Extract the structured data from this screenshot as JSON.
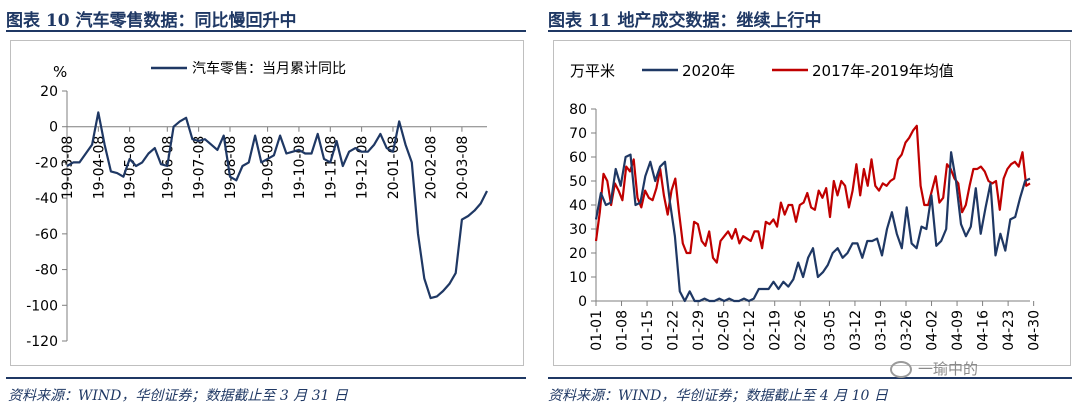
{
  "panels": {
    "left": {
      "title": "图表 10   汽车零售数据：同比慢回升中",
      "source": "资料来源：WIND，华创证券；数据截止至 3 月 31 日"
    },
    "right": {
      "title": "图表 11   地产成交数据：继续上行中",
      "source": "资料来源：WIND，华创证券；数据截止至 4 月 10 日"
    }
  },
  "watermark": "一瑜中的",
  "colors": {
    "navy": "#1f3864",
    "red": "#c00000"
  },
  "chart_data": [
    {
      "type": "line",
      "ylabel": "%",
      "ylim": [
        -120,
        20
      ],
      "yticks": [
        20,
        0,
        -20,
        -40,
        -60,
        -80,
        -100,
        -120
      ],
      "x": [
        "19-03-08",
        "19-03-15",
        "19-03-22",
        "19-03-29",
        "19-04-05",
        "19-04-08",
        "19-04-12",
        "19-04-19",
        "19-04-26",
        "19-05-03",
        "19-05-08",
        "19-05-10",
        "19-05-17",
        "19-05-24",
        "19-05-31",
        "19-06-07",
        "19-06-08",
        "19-06-14",
        "19-06-21",
        "19-06-28",
        "19-07-05",
        "19-07-08",
        "19-07-12",
        "19-07-19",
        "19-07-26",
        "19-08-02",
        "19-08-08",
        "19-08-09",
        "19-08-16",
        "19-08-23",
        "19-08-30",
        "19-09-06",
        "19-09-08",
        "19-09-13",
        "19-09-20",
        "19-09-27",
        "19-10-04",
        "19-10-08",
        "19-10-11",
        "19-10-18",
        "19-10-25",
        "19-11-01",
        "19-11-08",
        "19-11-15",
        "19-11-22",
        "19-11-29",
        "19-12-06",
        "19-12-08",
        "19-12-13",
        "19-12-20",
        "19-12-27",
        "20-01-03",
        "20-01-08",
        "20-01-10",
        "20-01-17",
        "20-01-24",
        "20-01-31",
        "20-02-07",
        "20-02-08",
        "20-02-14",
        "20-02-21",
        "20-02-28",
        "20-03-06",
        "20-03-08",
        "20-03-13",
        "20-03-20",
        "20-03-27",
        "20-03-31"
      ],
      "xticks": [
        "19-03-08",
        "19-04-08",
        "19-05-08",
        "19-06-08",
        "19-07-08",
        "19-08-08",
        "19-09-08",
        "19-10-08",
        "19-11-08",
        "19-12-08",
        "20-01-08",
        "20-02-08",
        "20-03-08"
      ],
      "series": [
        {
          "name": "汽车零售：当月累计同比",
          "color": "#1f3864",
          "values": [
            -22,
            -20,
            -20,
            -15,
            -10,
            8,
            -10,
            -25,
            -26,
            -28,
            -18,
            -22,
            -20,
            -15,
            -12,
            -21,
            -22,
            0,
            3,
            5,
            -7,
            -8,
            -7,
            -10,
            -13,
            -5,
            -28,
            -30,
            -22,
            -20,
            -5,
            -20,
            -18,
            -16,
            -5,
            -15,
            -14,
            -13,
            -15,
            -15,
            -4,
            -18,
            -20,
            -8,
            -22,
            -14,
            -12,
            -14,
            -14,
            -10,
            -4,
            -12,
            -14,
            3,
            -10,
            -20,
            -60,
            -85,
            -96,
            -95,
            -92,
            -88,
            -82,
            -52,
            -50,
            -47,
            -43,
            -36
          ]
        }
      ]
    },
    {
      "type": "line",
      "ylabel": "万平米",
      "ylim": [
        0,
        80
      ],
      "yticks": [
        80,
        70,
        60,
        50,
        40,
        30,
        20,
        10,
        0
      ],
      "xticks": [
        "01-01",
        "01-08",
        "01-15",
        "01-22",
        "01-29",
        "02-05",
        "02-12",
        "02-19",
        "02-26",
        "03-05",
        "03-12",
        "03-19",
        "03-26",
        "04-02",
        "04-09",
        "04-16",
        "04-23",
        "04-30"
      ],
      "x_start": "01-01",
      "x_end": "04-30",
      "series": [
        {
          "name": "2020年",
          "color": "#1f3864",
          "values": [
            34,
            45,
            40,
            41,
            55,
            48,
            60,
            61,
            40,
            41,
            52,
            58,
            50,
            56,
            58,
            41,
            27,
            4,
            0,
            4,
            0,
            0,
            1,
            0,
            0,
            1,
            0,
            1,
            0,
            0,
            1,
            0,
            1,
            5,
            5,
            5,
            8,
            5,
            8,
            6,
            9,
            16,
            10,
            18,
            22,
            10,
            12,
            15,
            20,
            22,
            18,
            20,
            24,
            24,
            18,
            25,
            25,
            26,
            19,
            30,
            37,
            28,
            22,
            39,
            24,
            22,
            31,
            30,
            44,
            23,
            25,
            30,
            62,
            50,
            32,
            27,
            31,
            47,
            28,
            39,
            49,
            19,
            28,
            21,
            34,
            35,
            43,
            50,
            51
          ]
        },
        {
          "name": "2017年-2019年均值",
          "color": "#c00000",
          "values": [
            25,
            37,
            53,
            50,
            40,
            49,
            46,
            42,
            56,
            54,
            59,
            43,
            39,
            46,
            43,
            42,
            47,
            55,
            44,
            36,
            46,
            51,
            37,
            24,
            20,
            20,
            33,
            32,
            25,
            23,
            29,
            18,
            16,
            25,
            27,
            29,
            26,
            30,
            24,
            27,
            26,
            25,
            29,
            29,
            22,
            33,
            32,
            34,
            31,
            41,
            36,
            40,
            40,
            33,
            40,
            41,
            45,
            39,
            38,
            46,
            43,
            47,
            35,
            50,
            44,
            50,
            48,
            39,
            46,
            57,
            44,
            55,
            48,
            59,
            48,
            46,
            49,
            48,
            50,
            51,
            59,
            61,
            66,
            68,
            71,
            73,
            48,
            40,
            40,
            46,
            52,
            41,
            43,
            57,
            55,
            51,
            49,
            37,
            40,
            48,
            55,
            55,
            56,
            54,
            50,
            49,
            50,
            38,
            51,
            55,
            57,
            58,
            56,
            62,
            48,
            49
          ]
        }
      ]
    }
  ]
}
